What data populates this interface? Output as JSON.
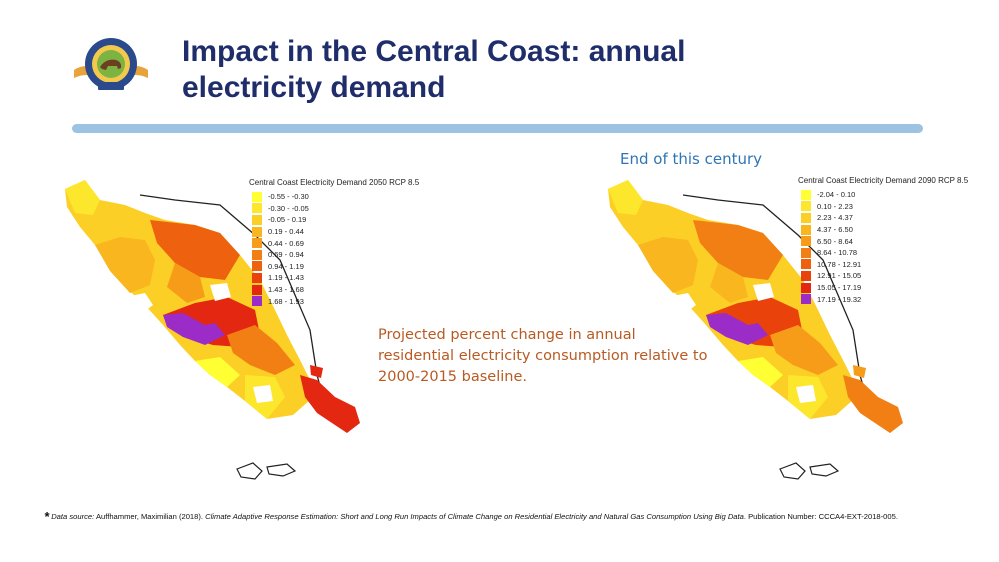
{
  "slide": {
    "title_line1": "Impact in the Central Coast: annual",
    "title_line2": "electricity demand",
    "logo": {
      "icon": "california-energy-commission-seal",
      "text": "STATE OF CALIFORNIA ENERGY COMMISSION"
    },
    "end_label": "End of this century",
    "caption": "Projected percent change in annual residential electricity consumption relative to 2000-2015 baseline."
  },
  "colors": {
    "title": "#1f2d6b",
    "rule": "#9dc3e2",
    "end_label": "#2e75b6",
    "caption": "#b85a22"
  },
  "maps": [
    {
      "legend_title": "Central Coast Electricity Demand 2050 RCP 8.5",
      "classes": [
        {
          "label": "-0.55 - -0.30",
          "color": "#ffff33"
        },
        {
          "label": "-0.30 - -0.05",
          "color": "#fde72c"
        },
        {
          "label": "-0.05 - 0.19",
          "color": "#fccf26"
        },
        {
          "label": "0.19 - 0.44",
          "color": "#f9b61f"
        },
        {
          "label": "0.44 - 0.69",
          "color": "#f69c19"
        },
        {
          "label": "0.69 - 0.94",
          "color": "#f27f14"
        },
        {
          "label": "0.94 - 1.19",
          "color": "#ee620f"
        },
        {
          "label": "1.19 - 1.43",
          "color": "#ea420b"
        },
        {
          "label": "1.43 - 1.68",
          "color": "#e32710"
        },
        {
          "label": "1.68 - 1.93",
          "color": "#9b2cc8"
        }
      ]
    },
    {
      "legend_title": "Central Coast Electricity Demand 2090 RCP 8.5",
      "classes": [
        {
          "label": "-2.04 - 0.10",
          "color": "#ffff33"
        },
        {
          "label": "0.10 - 2.23",
          "color": "#fde72c"
        },
        {
          "label": "2.23 - 4.37",
          "color": "#fccf26"
        },
        {
          "label": "4.37 - 6.50",
          "color": "#f9b61f"
        },
        {
          "label": "6.50 - 8.64",
          "color": "#f69c19"
        },
        {
          "label": "8.64 - 10.78",
          "color": "#f27f14"
        },
        {
          "label": "10.78 - 12.91",
          "color": "#ee620f"
        },
        {
          "label": "12.91 - 15.05",
          "color": "#ea420b"
        },
        {
          "label": "15.05 - 17.19",
          "color": "#e32710"
        },
        {
          "label": "17.19 - 19.32",
          "color": "#9b2cc8"
        }
      ]
    }
  ],
  "footnote": {
    "star": "*",
    "source_label": "Data source:",
    "author": "Auffhammer, Maximilian (2018).",
    "title": "Climate Adaptive Response Estimation: Short and Long Run Impacts of Climate Change on Residential Electricity and Natural Gas Consumption Using Big Data",
    "publication": "Publication Number: CCCA4-EXT-2018-005."
  }
}
